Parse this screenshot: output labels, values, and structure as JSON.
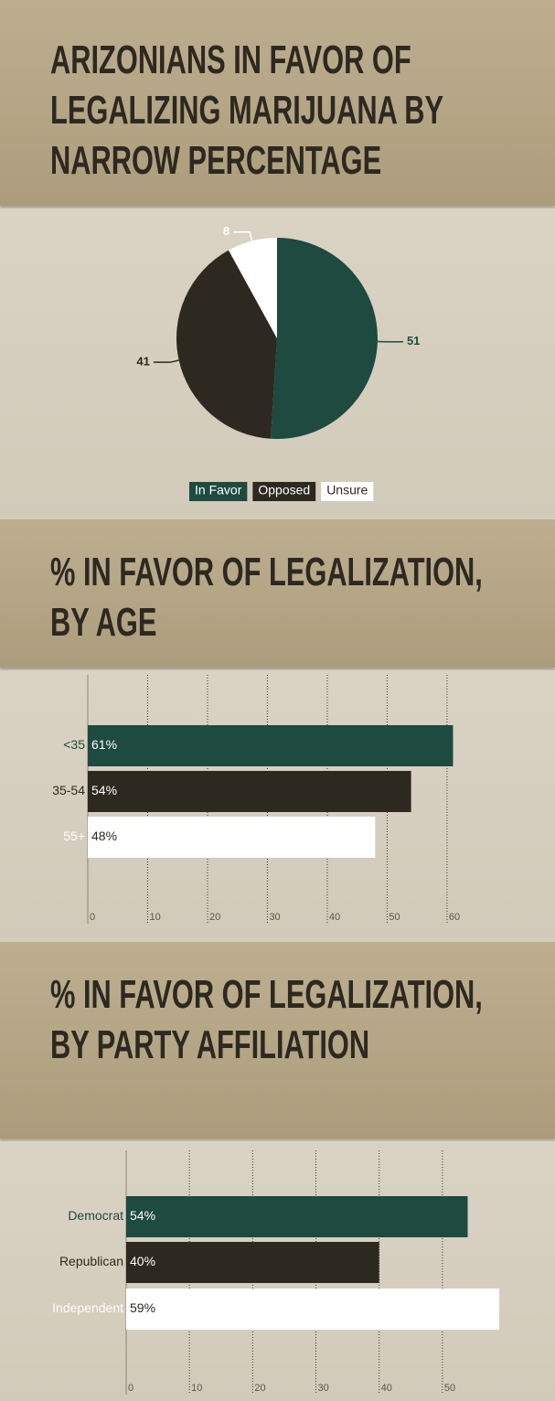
{
  "chart_data": [
    {
      "type": "pie",
      "title": "ARIZONIANS IN FAVOR OF LEGALIZING MARIJUANA BY NARROW PERCENTAGE",
      "categories": [
        "In Favor",
        "Opposed",
        "Unsure"
      ],
      "values": [
        51,
        41,
        8
      ],
      "colors": [
        "#1e4a40",
        "#2d2920",
        "#ffffff"
      ]
    },
    {
      "type": "bar",
      "title": "% IN FAVOR OF LEGALIZATION, BY AGE",
      "categories": [
        "<35",
        "35-54",
        "55+"
      ],
      "values": [
        61,
        54,
        48
      ],
      "value_labels": [
        "61%",
        "54%",
        "48%"
      ],
      "colors": [
        "#1e4a40",
        "#2d2920",
        "#ffffff"
      ],
      "xlim": [
        0,
        62
      ],
      "xticks": [
        0,
        10,
        20,
        30,
        40,
        50,
        60
      ],
      "grid": true
    },
    {
      "type": "bar",
      "title": "% IN FAVOR OF LEGALIZATION, BY PARTY AFFILIATION",
      "categories": [
        "Democrat",
        "Republican",
        "Independent"
      ],
      "values": [
        54,
        40,
        59
      ],
      "value_labels": [
        "54%",
        "40%",
        "59%"
      ],
      "colors": [
        "#1e4a40",
        "#2d2920",
        "#ffffff"
      ],
      "xlim": [
        0,
        60
      ],
      "xticks": [
        0,
        10,
        20,
        30,
        40,
        50
      ],
      "grid": true
    }
  ]
}
